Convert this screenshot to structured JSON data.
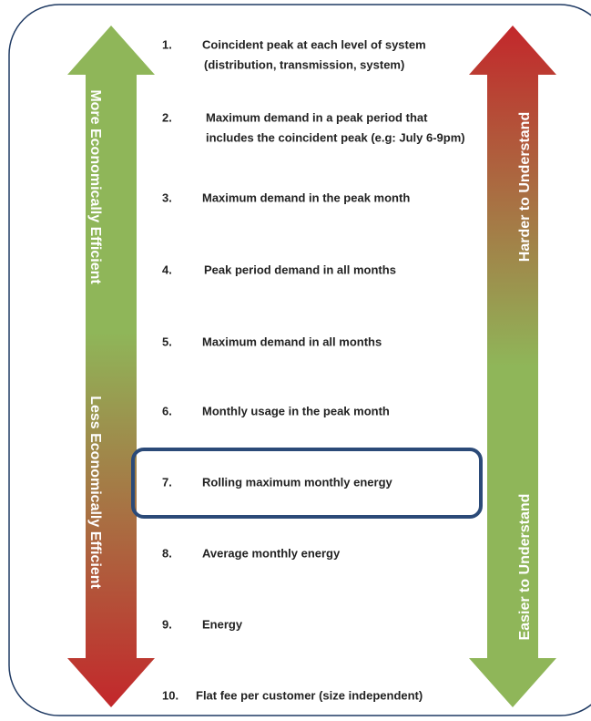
{
  "left_arrow": {
    "top_label": "More Economically Efficient",
    "bottom_label": "Less Economically Efficient"
  },
  "right_arrow": {
    "top_label": "Harder to Understand",
    "bottom_label": "Easier to Understand"
  },
  "items": [
    {
      "number": "1.",
      "lines": [
        "Coincident peak at each level of system",
        "(distribution, transmission, system)"
      ]
    },
    {
      "number": "2.",
      "lines": [
        "Maximum demand in a peak period that",
        "includes the coincident peak (e.g: July 6-9pm)"
      ]
    },
    {
      "number": "3.",
      "lines": [
        "Maximum demand in the peak month"
      ]
    },
    {
      "number": "4.",
      "lines": [
        "Peak period demand in all months"
      ]
    },
    {
      "number": "5.",
      "lines": [
        "Maximum demand in all months"
      ]
    },
    {
      "number": "6.",
      "lines": [
        "Monthly usage in the peak month"
      ]
    },
    {
      "number": "7.",
      "lines": [
        "Rolling maximum monthly energy"
      ]
    },
    {
      "number": "8.",
      "lines": [
        "Average monthly energy"
      ]
    },
    {
      "number": "9.",
      "lines": [
        "Energy"
      ]
    },
    {
      "number": "10.",
      "lines": [
        "Flat fee per customer (size independent)"
      ]
    }
  ]
}
